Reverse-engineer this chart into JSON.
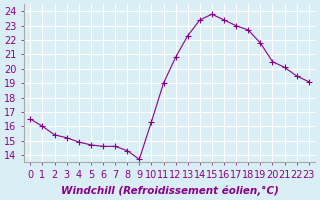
{
  "x": [
    0,
    1,
    2,
    3,
    4,
    5,
    6,
    7,
    8,
    9,
    10,
    11,
    12,
    13,
    14,
    15,
    16,
    17,
    18,
    19,
    20,
    21,
    22,
    23
  ],
  "y": [
    16.5,
    16.0,
    15.4,
    15.2,
    14.9,
    14.7,
    14.6,
    14.6,
    14.3,
    13.7,
    16.3,
    19.0,
    20.8,
    22.3,
    23.4,
    23.8,
    23.4,
    23.0,
    22.7,
    21.8,
    20.5,
    20.1,
    19.5,
    19.1
  ],
  "line_color": "#8B008B",
  "marker": "+",
  "marker_size": 4,
  "bg_color": "#d9eff5",
  "grid_color": "#ffffff",
  "xlabel": "Windchill (Refroidissement éolien,°C)",
  "ylabel_ticks": [
    14,
    15,
    16,
    17,
    18,
    19,
    20,
    21,
    22,
    23,
    24
  ],
  "xlim": [
    -0.5,
    23.5
  ],
  "ylim": [
    13.5,
    24.5
  ],
  "xlabel_fontsize": 7.5,
  "tick_fontsize": 7
}
